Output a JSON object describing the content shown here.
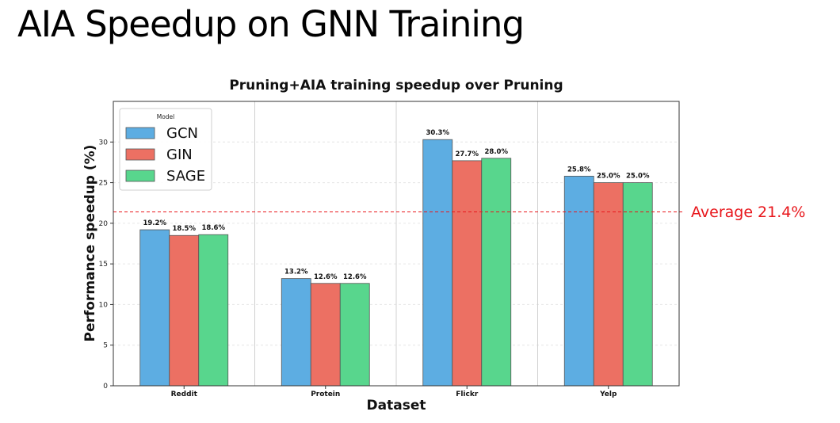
{
  "slide": {
    "title": "AIA Speedup on GNN Training"
  },
  "chart_data": {
    "type": "bar",
    "title": "Pruning+AIA training speedup over Pruning",
    "xlabel": "Dataset",
    "ylabel": "Performance speedup (%)",
    "ylim": [
      0,
      35
    ],
    "yticks": [
      0,
      5,
      10,
      15,
      20,
      25,
      30
    ],
    "categories": [
      "Reddit",
      "Protein",
      "Flickr",
      "Yelp"
    ],
    "series": [
      {
        "name": "GCN",
        "color": "#5dade2",
        "values": [
          19.2,
          13.2,
          30.3,
          25.8
        ],
        "labels": [
          "19.2%",
          "13.2%",
          "30.3%",
          "25.8%"
        ]
      },
      {
        "name": "GIN",
        "color": "#ec7063",
        "values": [
          18.5,
          12.6,
          27.7,
          25.0
        ],
        "labels": [
          "18.5%",
          "12.6%",
          "27.7%",
          "25.0%"
        ]
      },
      {
        "name": "SAGE",
        "color": "#58d68d",
        "values": [
          18.6,
          12.6,
          28.0,
          25.0
        ],
        "labels": [
          "18.6%",
          "12.6%",
          "28.0%",
          "25.0%"
        ]
      }
    ],
    "legend": {
      "title": "Model",
      "placement": "top-left"
    },
    "grid": true,
    "average": {
      "value": 21.4,
      "label": "Average 21.4%",
      "color": "#e8161b"
    }
  }
}
